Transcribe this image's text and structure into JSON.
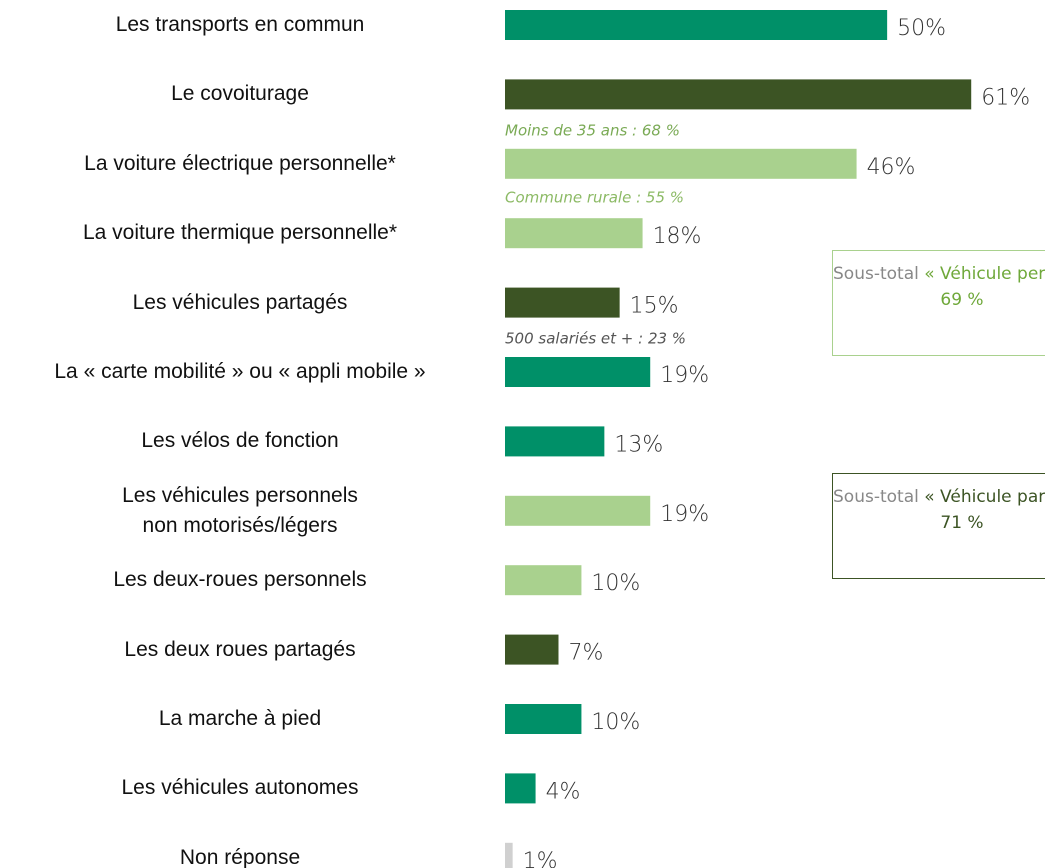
{
  "chart_data": {
    "type": "bar",
    "orientation": "horizontal",
    "categories": [
      "Les transports en commun",
      "Le covoiturage",
      "La voiture électrique personnelle*",
      "La voiture thermique personnelle*",
      "Les véhicules partagés",
      "La « carte mobilité » ou « appli mobile »",
      "Les vélos de fonction",
      "Les véhicules personnels\nnon motorisés/légers",
      "Les deux-roues personnels",
      "Les deux roues partagés",
      "La marche à pied",
      "Les véhicules autonomes",
      "Non réponse"
    ],
    "values": [
      50,
      61,
      46,
      18,
      15,
      19,
      13,
      19,
      10,
      7,
      10,
      4,
      1
    ],
    "value_labels": [
      "50%",
      "61%",
      "46%",
      "18%",
      "15%",
      "19%",
      "13%",
      "19%",
      "10%",
      "7%",
      "10%",
      "4%",
      "1%"
    ],
    "colors": [
      "#009068",
      "#3c5424",
      "#a9d18e",
      "#a9d18e",
      "#3c5424",
      "#009068",
      "#009068",
      "#a9d18e",
      "#a9d18e",
      "#3c5424",
      "#009068",
      "#009068",
      "#d0d0d0"
    ],
    "xlim": [
      0,
      70
    ],
    "annotations": [
      "Moins de 35 ans : 68 %",
      "Commune rurale : 55 %",
      "500 salariés et + : 23 %"
    ],
    "subtotals": [
      {
        "label": "Sous-total",
        "name": "« Véhicule personnel »",
        "value": 69,
        "value_label": "69 %",
        "color": "#a9d18e",
        "text_color": "#6fa83a"
      },
      {
        "label": "Sous-total",
        "name": "« Véhicule partagé »",
        "value": 71,
        "value_label": "71 %",
        "color": "#3c5424",
        "text_color": "#3c5424"
      }
    ]
  }
}
